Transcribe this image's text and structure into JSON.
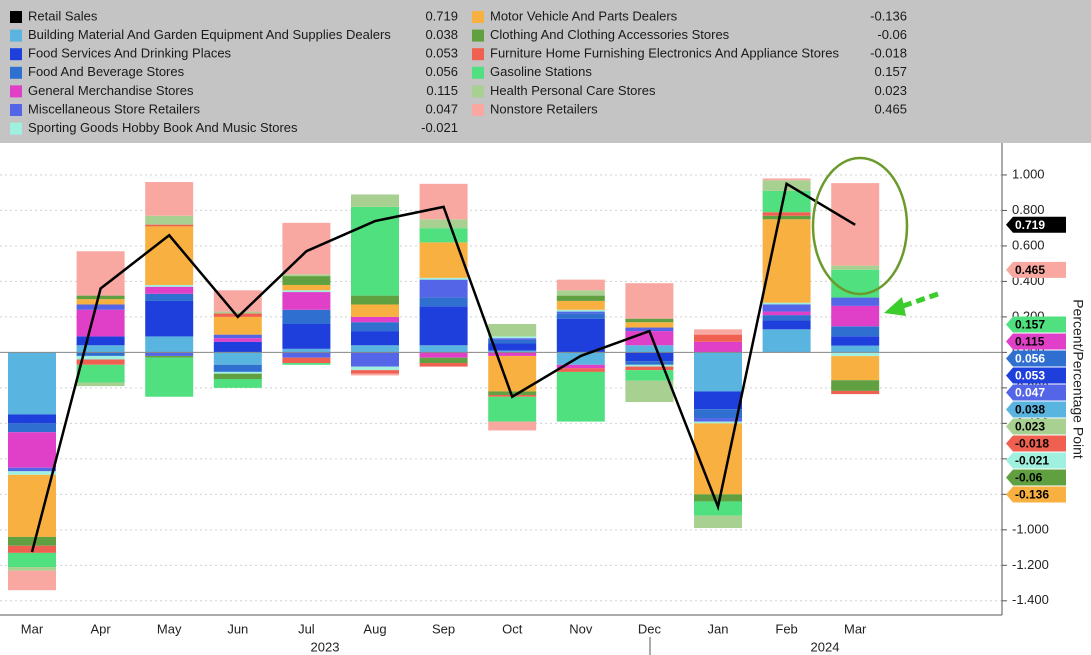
{
  "chart_data": {
    "type": "bar",
    "stacked": true,
    "y_axis_label": "Percent/Percentage Point",
    "categories": [
      "Mar",
      "Apr",
      "May",
      "Jun",
      "Jul",
      "Aug",
      "Sep",
      "Oct",
      "Nov",
      "Dec",
      "Jan",
      "Feb",
      "Mar"
    ],
    "x_groups": [
      "2023",
      "2024"
    ],
    "ylim": [
      -1.48,
      1.18
    ],
    "yticks": [
      {
        "value": 1.0,
        "label": "1.000"
      },
      {
        "value": 0.8,
        "label": "0.800"
      },
      {
        "value": 0.6,
        "label": "0.600"
      },
      {
        "value": 0.4,
        "label": "0.400"
      },
      {
        "value": 0.2,
        "label": "0.200"
      },
      {
        "value": 0,
        "label": "0.000"
      },
      {
        "value": -0.2,
        "label": "-0.200"
      },
      {
        "value": -0.4,
        "label": "-0.400"
      },
      {
        "value": -0.6,
        "label": "-0.600"
      },
      {
        "value": -0.8,
        "label": "-0.800"
      },
      {
        "value": -1.0,
        "label": "-1.000"
      },
      {
        "value": -1.2,
        "label": "-1.200"
      },
      {
        "value": -1.4,
        "label": "-1.400"
      }
    ],
    "grid": true,
    "series": [
      {
        "name": "Retail Sales",
        "type": "line",
        "color": "#000000",
        "values": [
          -1.125,
          0.36,
          0.66,
          0.2,
          0.57,
          0.74,
          0.82,
          -0.25,
          -0.02,
          0.12,
          -0.87,
          0.95,
          0.719
        ]
      },
      {
        "name": "Building Material And Garden Equipment And Supplies Dealers",
        "color": "#5ab4e0",
        "values": [
          -0.35,
          0.04,
          0.09,
          -0.07,
          0.02,
          0.04,
          0.04,
          0.01,
          -0.07,
          0.04,
          -0.22,
          0.13,
          0.038
        ]
      },
      {
        "name": "Food Services And Drinking Places",
        "color": "#1f3fdc",
        "values": [
          -0.05,
          0.05,
          0.2,
          0.06,
          0.14,
          0.08,
          0.22,
          0.04,
          0.19,
          -0.05,
          -0.1,
          0.05,
          0.053
        ]
      },
      {
        "name": "Food And Beverage Stores",
        "color": "#2e6fd0",
        "values": [
          -0.05,
          -0.02,
          0.04,
          -0.04,
          0.08,
          0.05,
          0.05,
          0.02,
          0.03,
          -0.02,
          -0.05,
          0.03,
          0.056
        ]
      },
      {
        "name": "General Merchandise Stores",
        "color": "#e040c8",
        "values": [
          -0.2,
          0.15,
          0.04,
          0.02,
          0.1,
          0.03,
          -0.03,
          -0.02,
          -0.02,
          0.08,
          0.06,
          0.02,
          0.115
        ]
      },
      {
        "name": "Miscellaneous Store Retailers",
        "color": "#5565e8",
        "values": [
          -0.02,
          0.03,
          -0.02,
          0.02,
          -0.03,
          -0.08,
          0.1,
          0.01,
          0.01,
          0.02,
          -0.02,
          0.04,
          0.047
        ]
      },
      {
        "name": "Sporting Goods Hobby Book And Music Stores",
        "color": "#a0f0e0",
        "values": [
          -0.02,
          -0.02,
          0.01,
          -0.01,
          0.01,
          -0.02,
          0.01,
          0.01,
          0.01,
          -0.01,
          -0.01,
          0.01,
          -0.021
        ]
      },
      {
        "name": "Motor Vehicle And Parts Dealers",
        "color": "#f8b040",
        "values": [
          -0.35,
          0.03,
          0.33,
          0.1,
          0.03,
          0.07,
          0.2,
          -0.2,
          0.05,
          0.03,
          -0.4,
          0.47,
          -0.136
        ]
      },
      {
        "name": "Clothing And Clothing Accessories Stores",
        "color": "#60a040",
        "values": [
          -0.05,
          0.02,
          -0.01,
          -0.03,
          0.05,
          0.05,
          -0.03,
          -0.02,
          0.03,
          0.02,
          -0.04,
          0.02,
          -0.06
        ]
      },
      {
        "name": "Furniture Home Furnishing Electronics And Appliance Stores",
        "color": "#f06050",
        "values": [
          -0.04,
          -0.03,
          0.01,
          0.02,
          -0.03,
          -0.02,
          -0.02,
          -0.01,
          -0.02,
          -0.02,
          0.04,
          0.02,
          -0.018
        ]
      },
      {
        "name": "Gasoline Stations",
        "color": "#50e080",
        "values": [
          -0.08,
          -0.1,
          -0.22,
          -0.05,
          -0.01,
          0.5,
          0.08,
          -0.14,
          -0.28,
          -0.06,
          -0.08,
          0.12,
          0.157
        ]
      },
      {
        "name": "Health Personal Care Stores",
        "color": "#a8d090",
        "values": [
          -0.02,
          -0.02,
          0.05,
          0.01,
          0.01,
          0.07,
          0.05,
          0.07,
          0.03,
          -0.12,
          -0.07,
          0.06,
          0.023
        ]
      },
      {
        "name": "Nonstore Retailers",
        "color": "#f8a8a0",
        "values": [
          -0.11,
          0.25,
          0.19,
          0.12,
          0.29,
          -0.01,
          0.2,
          -0.05,
          0.06,
          0.2,
          0.03,
          0.01,
          0.465
        ]
      }
    ]
  }
}
